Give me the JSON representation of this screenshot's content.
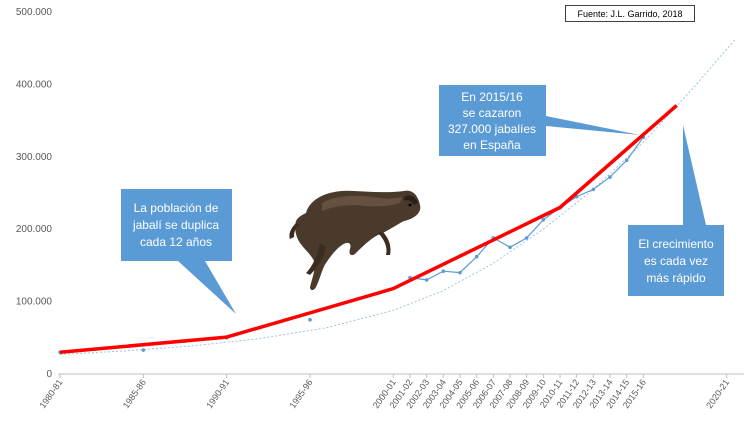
{
  "source": "Fuente: J.L. Garrido, 2018",
  "callouts": {
    "population": [
      "La población de",
      "jabalí se duplica",
      "cada 12 años"
    ],
    "hunt": [
      "En 2015/16",
      "se cazaron",
      "327.000 jabalíes",
      "en España"
    ],
    "growth": [
      "El crecimiento",
      "es cada vez",
      "más rápido"
    ]
  },
  "colors": {
    "callout_fill": "#5B9BD5",
    "trend": "#FF0000",
    "series": "#5B9BD5",
    "fit": "#9DC3E6"
  },
  "image": "wild-boar-photo",
  "chart_data": {
    "type": "line",
    "ylim": [
      0,
      500000
    ],
    "y_ticks": [
      "0",
      "100.000",
      "200.000",
      "300.000",
      "400.000",
      "500.000"
    ],
    "y_tick_values": [
      0,
      100000,
      200000,
      300000,
      400000,
      500000
    ],
    "x_tick_labels": [
      "1980-81",
      "1985-86",
      "1990-91",
      "1995-96",
      "2000-01",
      "2001-02",
      "2002-03",
      "2003-04",
      "2004-05",
      "2005-06",
      "2006-07",
      "2007-08",
      "2008-09",
      "2009-10",
      "2010-11",
      "2011-12",
      "2012-13",
      "2013-14",
      "2014-15",
      "2015-16",
      "2020-21"
    ],
    "x_tick_values": [
      1980,
      1985,
      1990,
      1995,
      2000,
      2001,
      2002,
      2003,
      2004,
      2005,
      2006,
      2007,
      2008,
      2009,
      2010,
      2011,
      2012,
      2013,
      2014,
      2015,
      2020
    ],
    "series": [
      {
        "kind": "observed",
        "x": [
          1980,
          1985,
          1990,
          1995,
          2001,
          2002,
          2003,
          2004,
          2005,
          2006,
          2007,
          2008,
          2009,
          2010,
          2011,
          2012,
          2013,
          2014,
          2015
        ],
        "y": [
          30000,
          33000,
          50000,
          75000,
          133000,
          130000,
          142000,
          140000,
          162000,
          188000,
          175000,
          188000,
          213000,
          230000,
          245000,
          255000,
          272000,
          295000,
          327000
        ]
      },
      {
        "kind": "doubling-trend",
        "x": [
          1980,
          1990,
          2000,
          2010,
          2017
        ],
        "y": [
          30000,
          51000,
          118000,
          230000,
          371000
        ]
      },
      {
        "kind": "exponential-fit",
        "x": [
          1980,
          1984,
          1988,
          1992,
          1996,
          2000,
          2003,
          2006,
          2009,
          2012,
          2015,
          2018,
          2020.5
        ],
        "y": [
          27000,
          32000,
          39000,
          49000,
          64000,
          88000,
          115000,
          153000,
          200000,
          255000,
          320000,
          395000,
          462000
        ]
      }
    ]
  }
}
